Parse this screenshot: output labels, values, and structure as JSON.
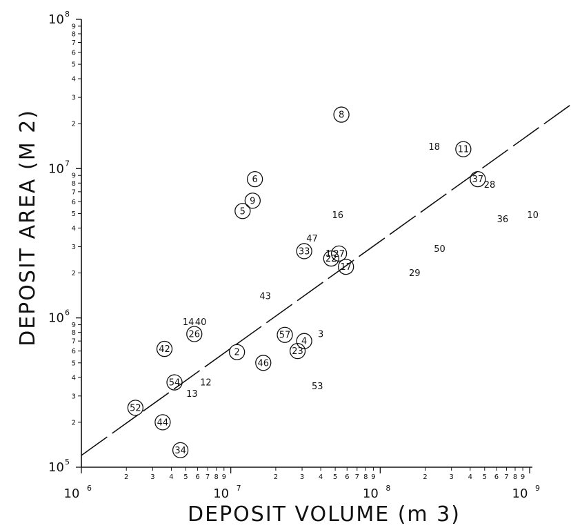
{
  "chart_data": {
    "type": "scatter",
    "title": "",
    "xlabel": "DEPOSIT VOLUME (m 3)",
    "ylabel": "DEPOSIT AREA (M 2)",
    "xscale": "log",
    "yscale": "log",
    "xlim": [
      1000000,
      1000000000
    ],
    "ylim": [
      100000,
      100000000
    ],
    "grid": false,
    "x_decade_labels": [
      {
        "base": "10",
        "exp": "6",
        "value": 1000000
      },
      {
        "base": "10",
        "exp": "7",
        "value": 10000000
      },
      {
        "base": "10",
        "exp": "8",
        "value": 100000000
      },
      {
        "base": "10",
        "exp": "9",
        "value": 1000000000
      }
    ],
    "y_decade_labels": [
      {
        "base": "10",
        "exp": "5",
        "value": 100000
      },
      {
        "base": "10",
        "exp": "6",
        "value": 1000000
      },
      {
        "base": "10",
        "exp": "7",
        "value": 10000000
      },
      {
        "base": "10",
        "exp": "8",
        "value": 100000000
      }
    ],
    "minor_tick_labels": [
      "2",
      "3",
      "4",
      "5",
      "6",
      "7",
      "8",
      "9"
    ],
    "points": [
      {
        "label": "8",
        "x": 55000000,
        "y": 23000000,
        "circled": true
      },
      {
        "label": "18",
        "x": 230000000,
        "y": 14000000,
        "circled": false
      },
      {
        "label": "11",
        "x": 360000000,
        "y": 13500000,
        "circled": true
      },
      {
        "label": "37",
        "x": 450000000,
        "y": 8500000,
        "circled": true
      },
      {
        "label": "28",
        "x": 540000000,
        "y": 7800000,
        "circled": false
      },
      {
        "label": "36",
        "x": 660000000,
        "y": 4600000,
        "circled": false
      },
      {
        "label": "10",
        "x": 1050000000,
        "y": 4900000,
        "circled": false
      },
      {
        "label": "6",
        "x": 14500000,
        "y": 8500000,
        "circled": true
      },
      {
        "label": "9",
        "x": 14000000,
        "y": 6100000,
        "circled": true
      },
      {
        "label": "5",
        "x": 12000000,
        "y": 5200000,
        "circled": true
      },
      {
        "label": "16",
        "x": 52000000,
        "y": 4900000,
        "circled": false
      },
      {
        "label": "47",
        "x": 35000000,
        "y": 3400000,
        "circled": false
      },
      {
        "label": "50",
        "x": 250000000,
        "y": 2900000,
        "circled": false
      },
      {
        "label": "33",
        "x": 31000000,
        "y": 2800000,
        "circled": true
      },
      {
        "label": "1",
        "x": 45000000,
        "y": 2700000,
        "circled": false
      },
      {
        "label": "27",
        "x": 53000000,
        "y": 2700000,
        "circled": true
      },
      {
        "label": "22",
        "x": 47000000,
        "y": 2500000,
        "circled": true
      },
      {
        "label": "17",
        "x": 59000000,
        "y": 2200000,
        "circled": true
      },
      {
        "label": "29",
        "x": 170000000,
        "y": 2000000,
        "circled": false
      },
      {
        "label": "43",
        "x": 17000000,
        "y": 1400000,
        "circled": false
      },
      {
        "label": "14",
        "x": 5200000,
        "y": 940000,
        "circled": false
      },
      {
        "label": "40",
        "x": 6300000,
        "y": 940000,
        "circled": false
      },
      {
        "label": "26",
        "x": 5700000,
        "y": 780000,
        "circled": true
      },
      {
        "label": "57",
        "x": 23000000,
        "y": 770000,
        "circled": true
      },
      {
        "label": "3",
        "x": 40000000,
        "y": 780000,
        "circled": false
      },
      {
        "label": "4",
        "x": 31000000,
        "y": 700000,
        "circled": true
      },
      {
        "label": "42",
        "x": 3600000,
        "y": 620000,
        "circled": true
      },
      {
        "label": "2",
        "x": 11000000,
        "y": 590000,
        "circled": true
      },
      {
        "label": "23",
        "x": 28000000,
        "y": 600000,
        "circled": true
      },
      {
        "label": "46",
        "x": 16500000,
        "y": 500000,
        "circled": true
      },
      {
        "label": "54",
        "x": 4200000,
        "y": 370000,
        "circled": true
      },
      {
        "label": "12",
        "x": 6800000,
        "y": 370000,
        "circled": false
      },
      {
        "label": "53",
        "x": 38000000,
        "y": 350000,
        "circled": false
      },
      {
        "label": "13",
        "x": 5500000,
        "y": 310000,
        "circled": false
      },
      {
        "label": "52",
        "x": 2300000,
        "y": 250000,
        "circled": true
      },
      {
        "label": "44",
        "x": 3500000,
        "y": 200000,
        "circled": true
      },
      {
        "label": "34",
        "x": 4600000,
        "y": 130000,
        "circled": true
      }
    ],
    "fit_line": {
      "style": "dashed",
      "x": [
        1000000,
        1000000000
      ],
      "y": [
        120000,
        17000000
      ]
    }
  }
}
